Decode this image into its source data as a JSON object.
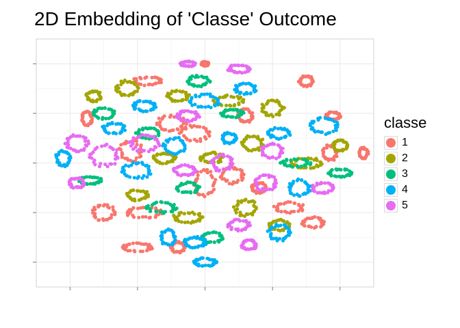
{
  "chart_data": {
    "type": "scatter",
    "title": "2D Embedding of 'Classe' Outcome",
    "xlabel": "",
    "ylabel": "",
    "xlim": [
      -50,
      50
    ],
    "ylim": [
      -50,
      50
    ],
    "grid": true,
    "legend": {
      "title": "classe",
      "placement": "right",
      "entries": [
        {
          "label": "1",
          "color": "#F8766D"
        },
        {
          "label": "2",
          "color": "#A3A500"
        },
        {
          "label": "3",
          "color": "#00BF7D"
        },
        {
          "label": "4",
          "color": "#00B0F6"
        },
        {
          "label": "5",
          "color": "#E76BF3"
        }
      ]
    },
    "series": [
      {
        "name": "1",
        "color": "#F8766D",
        "clusters": [
          {
            "x": 0,
            "y": 40,
            "rx": 1,
            "ry": 0.8
          },
          {
            "x": -17,
            "y": 33,
            "rx": 4,
            "ry": 1.5
          },
          {
            "x": -35,
            "y": 18,
            "rx": 1.5,
            "ry": 2.5
          },
          {
            "x": -10,
            "y": 16,
            "rx": 4,
            "ry": 3
          },
          {
            "x": -3,
            "y": 12,
            "rx": 4,
            "ry": 3
          },
          {
            "x": 12,
            "y": 19,
            "rx": 2,
            "ry": 2.5
          },
          {
            "x": 30,
            "y": 33,
            "rx": 2,
            "ry": 2
          },
          {
            "x": 38,
            "y": 19,
            "rx": 2,
            "ry": 1.5
          },
          {
            "x": 37,
            "y": 4,
            "rx": 2,
            "ry": 3
          },
          {
            "x": -22,
            "y": 5,
            "rx": 3,
            "ry": 4
          },
          {
            "x": 8,
            "y": -5,
            "rx": 3,
            "ry": 3
          },
          {
            "x": 0,
            "y": -8,
            "rx": 3,
            "ry": 5
          },
          {
            "x": -18,
            "y": -20,
            "rx": 5,
            "ry": 2
          },
          {
            "x": -30,
            "y": -20,
            "rx": 3,
            "ry": 3
          },
          {
            "x": -20,
            "y": -34,
            "rx": 4,
            "ry": 1.5
          },
          {
            "x": -8,
            "y": -34,
            "rx": 2,
            "ry": 2
          },
          {
            "x": 25,
            "y": -18,
            "rx": 4,
            "ry": 2
          },
          {
            "x": 32,
            "y": -24,
            "rx": 3,
            "ry": 2
          },
          {
            "x": 47,
            "y": 4,
            "rx": 1.2,
            "ry": 2
          },
          {
            "x": 16,
            "y": -10,
            "rx": 2,
            "ry": 2
          }
        ]
      },
      {
        "name": "2",
        "color": "#A3A500",
        "clusters": [
          {
            "x": -23,
            "y": 30,
            "rx": 3,
            "ry": 3
          },
          {
            "x": -8,
            "y": 27,
            "rx": 3,
            "ry": 2
          },
          {
            "x": 7,
            "y": 25,
            "rx": 4,
            "ry": 2
          },
          {
            "x": 20,
            "y": 22,
            "rx": 3,
            "ry": 3
          },
          {
            "x": -33,
            "y": 27,
            "rx": 2,
            "ry": 2
          },
          {
            "x": 14,
            "y": 8,
            "rx": 3,
            "ry": 3
          },
          {
            "x": 30,
            "y": 0,
            "rx": 4,
            "ry": 2
          },
          {
            "x": -12,
            "y": 2,
            "rx": 3,
            "ry": 2
          },
          {
            "x": 2,
            "y": 2,
            "rx": 3,
            "ry": 2
          },
          {
            "x": 12,
            "y": -18,
            "rx": 3,
            "ry": 3
          },
          {
            "x": -20,
            "y": -13,
            "rx": 3,
            "ry": 2
          },
          {
            "x": -5,
            "y": -22,
            "rx": 4,
            "ry": 2
          },
          {
            "x": 22,
            "y": -25,
            "rx": 3,
            "ry": 2
          },
          {
            "x": 40,
            "y": 7,
            "rx": 2,
            "ry": 2
          }
        ]
      },
      {
        "name": "3",
        "color": "#00BF7D",
        "clusters": [
          {
            "x": -2,
            "y": 33,
            "rx": 3,
            "ry": 2
          },
          {
            "x": -30,
            "y": 20,
            "rx": 3,
            "ry": 2
          },
          {
            "x": 8,
            "y": 20,
            "rx": 3,
            "ry": 1.5
          },
          {
            "x": -17,
            "y": 12,
            "rx": 3,
            "ry": 2
          },
          {
            "x": 27,
            "y": 0,
            "rx": 4,
            "ry": 1.5
          },
          {
            "x": 40,
            "y": -4,
            "rx": 3,
            "ry": 1.5
          },
          {
            "x": -5,
            "y": -10,
            "rx": 3,
            "ry": 2
          },
          {
            "x": -13,
            "y": -18,
            "rx": 4,
            "ry": 2
          },
          {
            "x": 2,
            "y": -30,
            "rx": 3,
            "ry": 2
          },
          {
            "x": -34,
            "y": -7,
            "rx": 3,
            "ry": 1.5
          }
        ]
      },
      {
        "name": "4",
        "color": "#00B0F6",
        "clusters": [
          {
            "x": -18,
            "y": 23,
            "rx": 3,
            "ry": 2
          },
          {
            "x": -27,
            "y": 14,
            "rx": 3,
            "ry": 2
          },
          {
            "x": 0,
            "y": 25,
            "rx": 4,
            "ry": 2.5
          },
          {
            "x": 12,
            "y": 30,
            "rx": 3,
            "ry": 2
          },
          {
            "x": 22,
            "y": 12,
            "rx": 3,
            "ry": 2
          },
          {
            "x": 35,
            "y": 15,
            "rx": 4,
            "ry": 3
          },
          {
            "x": -42,
            "y": 2,
            "rx": 2,
            "ry": 3
          },
          {
            "x": -20,
            "y": -3,
            "rx": 4,
            "ry": 3
          },
          {
            "x": -9,
            "y": 7,
            "rx": 3,
            "ry": 3
          },
          {
            "x": 7,
            "y": 10,
            "rx": 2,
            "ry": 2
          },
          {
            "x": 28,
            "y": -10,
            "rx": 3,
            "ry": 3
          },
          {
            "x": 22,
            "y": -28,
            "rx": 3,
            "ry": 3
          },
          {
            "x": -3,
            "y": -32,
            "rx": 3,
            "ry": 2
          },
          {
            "x": 0,
            "y": -40,
            "rx": 3,
            "ry": 1.5
          },
          {
            "x": -11,
            "y": -30,
            "rx": 2,
            "ry": 3
          }
        ]
      },
      {
        "name": "5",
        "color": "#E76BF3",
        "clusters": [
          {
            "x": -5,
            "y": 40,
            "rx": 2,
            "ry": 1
          },
          {
            "x": 10,
            "y": 38,
            "rx": 3,
            "ry": 1.5
          },
          {
            "x": -5,
            "y": 19,
            "rx": 3,
            "ry": 2
          },
          {
            "x": -18,
            "y": 8,
            "rx": 4,
            "ry": 3
          },
          {
            "x": -38,
            "y": 8,
            "rx": 3,
            "ry": 3
          },
          {
            "x": -30,
            "y": 3,
            "rx": 4,
            "ry": 4
          },
          {
            "x": -6,
            "y": -3,
            "rx": 3,
            "ry": 2
          },
          {
            "x": 20,
            "y": 5,
            "rx": 3,
            "ry": 3
          },
          {
            "x": 5,
            "y": 0,
            "rx": 3,
            "ry": 3
          },
          {
            "x": 18,
            "y": -8,
            "rx": 3,
            "ry": 3
          },
          {
            "x": 35,
            "y": -10,
            "rx": 3,
            "ry": 2
          },
          {
            "x": 10,
            "y": -25,
            "rx": 3,
            "ry": 2
          },
          {
            "x": 13,
            "y": -33,
            "rx": 2,
            "ry": 2
          },
          {
            "x": -38,
            "y": -8,
            "rx": 2,
            "ry": 2
          }
        ]
      }
    ]
  }
}
